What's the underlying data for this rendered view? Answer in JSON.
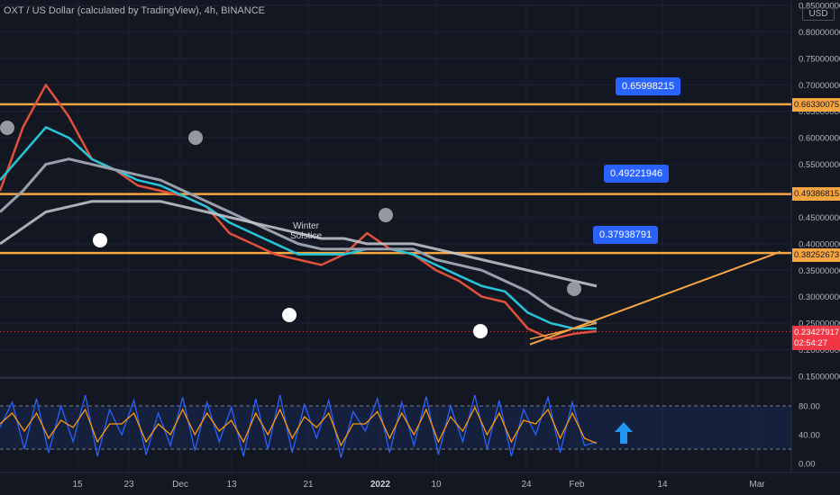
{
  "title": "OXT / US Dollar (calculated by TradingView), 4h, BINANCE",
  "currency_button": "USD",
  "colors": {
    "background": "#131722",
    "price_line": "#f7a541",
    "callout": "#2962ff",
    "current_price": "#f23645",
    "ema_fast": "#ff5a36",
    "ema_mid": "#26c6da",
    "ema_slow": "#b2b5be",
    "stoch_k": "#2962ff",
    "stoch_d": "#ff9800"
  },
  "callouts": [
    {
      "label": "0.65998215"
    },
    {
      "label": "0.49221946"
    },
    {
      "label": "0.37938791"
    }
  ],
  "annotation": {
    "line1": "Winter",
    "line2": "Solstice"
  },
  "price_labels": {
    "upper": "0.66330075",
    "middle": "0.49386815",
    "lower": "0.38252673",
    "current": "0.23427917",
    "countdown": "02:54:27"
  },
  "chart_data": {
    "type": "line",
    "title": "OXT / US Dollar (calculated by TradingView), 4h, BINANCE",
    "x_ticks": [
      "15",
      "23",
      "Dec",
      "13",
      "21",
      "2022",
      "10",
      "24",
      "Feb",
      "14",
      "Mar"
    ],
    "y_ticks": [
      "0.85000000",
      "0.80000000",
      "0.75000000",
      "0.70000000",
      "0.65000000",
      "0.60000000",
      "0.55000000",
      "0.50000000",
      "0.45000000",
      "0.40000000",
      "0.35000000",
      "0.30000000",
      "0.25000000",
      "0.20000000",
      "0.15000000"
    ],
    "ylim": [
      0.15,
      0.85
    ],
    "horizontal_levels": [
      0.66330075,
      0.49386815,
      0.38252673
    ],
    "current_price": 0.23427917,
    "trendline": {
      "from": 0.21,
      "to": 0.385
    },
    "series": [
      {
        "values": [
          0.5,
          0.62,
          0.7,
          0.64,
          0.56,
          0.54,
          0.51,
          0.5,
          0.49,
          0.47,
          0.42,
          0.4,
          0.38,
          0.37,
          0.36,
          0.38,
          0.42,
          0.39,
          0.38,
          0.35,
          0.33,
          0.3,
          0.29,
          0.24,
          0.22,
          0.23,
          0.235
        ]
      },
      {
        "values": [
          0.52,
          0.57,
          0.62,
          0.6,
          0.56,
          0.54,
          0.52,
          0.51,
          0.49,
          0.47,
          0.44,
          0.42,
          0.4,
          0.38,
          0.38,
          0.38,
          0.39,
          0.39,
          0.38,
          0.36,
          0.34,
          0.32,
          0.31,
          0.27,
          0.25,
          0.24,
          0.24
        ]
      },
      {
        "values": [
          0.46,
          0.5,
          0.55,
          0.56,
          0.55,
          0.54,
          0.53,
          0.52,
          0.5,
          0.48,
          0.46,
          0.44,
          0.42,
          0.4,
          0.39,
          0.39,
          0.39,
          0.39,
          0.39,
          0.37,
          0.36,
          0.35,
          0.33,
          0.31,
          0.28,
          0.26,
          0.25
        ]
      },
      {
        "values": [
          0.4,
          0.43,
          0.46,
          0.47,
          0.48,
          0.48,
          0.48,
          0.48,
          0.47,
          0.46,
          0.45,
          0.44,
          0.43,
          0.42,
          0.41,
          0.41,
          0.4,
          0.4,
          0.4,
          0.39,
          0.38,
          0.37,
          0.36,
          0.35,
          0.34,
          0.33,
          0.32
        ]
      }
    ],
    "stochastic": {
      "ylim": [
        0,
        100
      ],
      "y_ticks": [
        "80.00",
        "40.00",
        "0.00"
      ],
      "bands": [
        80,
        20
      ],
      "k": [
        50,
        85,
        20,
        90,
        15,
        80,
        30,
        95,
        10,
        75,
        40,
        88,
        12,
        70,
        25,
        92,
        18,
        85,
        30,
        78,
        10,
        90,
        20,
        95,
        15,
        82,
        35,
        88,
        8,
        72,
        45,
        90,
        15,
        85,
        25,
        93,
        12,
        80,
        30,
        95,
        20,
        88,
        10,
        75,
        40,
        92,
        15,
        85,
        25,
        30
      ],
      "d": [
        55,
        70,
        45,
        70,
        35,
        60,
        50,
        75,
        30,
        55,
        55,
        70,
        30,
        55,
        40,
        75,
        40,
        70,
        45,
        60,
        30,
        70,
        40,
        75,
        35,
        65,
        50,
        70,
        25,
        55,
        55,
        72,
        35,
        70,
        40,
        75,
        30,
        65,
        45,
        78,
        40,
        70,
        30,
        60,
        55,
        75,
        35,
        70,
        35,
        28
      ]
    }
  }
}
